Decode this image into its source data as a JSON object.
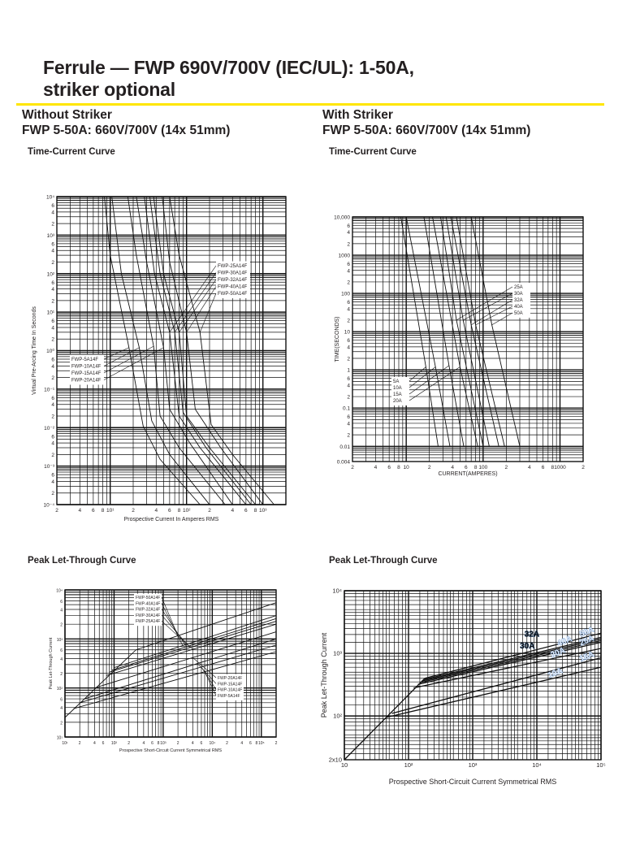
{
  "header": {
    "title_line1": "Ferrule — FWP 690V/700V (IEC/UL): 1-50A,",
    "title_line2": "striker optional",
    "accent_color": "#ffe600"
  },
  "left": {
    "heading": "Without Striker",
    "subheading": "FWP 5-50A: 660V/700V (14x 51mm)",
    "tc_caption": "Time-Current Curve",
    "plt_caption": "Peak Let-Through Curve"
  },
  "right": {
    "heading": "With Striker",
    "subheading": "FWP 5-50A: 660V/700V (14x 51mm)",
    "tc_caption": "Time-Current Curve",
    "plt_caption": "Peak Let-Through Curve"
  },
  "chart_data": [
    {
      "type": "line",
      "title": "Time-Current Curve (Without Striker)",
      "xlabel": "Prospective Current In Amperes RMS",
      "ylabel": "Virtual Pre-Arcing Time In Seconds",
      "xscale": "log",
      "yscale": "log",
      "xlim": [
        2,
        2000
      ],
      "ylim": [
        0.0001,
        10000
      ],
      "grid": true,
      "xticks": [
        [
          2,
          "2"
        ],
        [
          4,
          "4"
        ],
        [
          6,
          "6"
        ],
        [
          8,
          "8"
        ],
        [
          10,
          "10¹"
        ],
        [
          20,
          "2"
        ],
        [
          40,
          "4"
        ],
        [
          60,
          "6"
        ],
        [
          80,
          "8"
        ],
        [
          100,
          "10²"
        ],
        [
          200,
          "2"
        ],
        [
          400,
          "4"
        ],
        [
          600,
          "6"
        ],
        [
          800,
          "8"
        ],
        [
          1000,
          "10³"
        ]
      ],
      "yticks": [
        [
          10000,
          "10⁴"
        ],
        [
          6000,
          "6"
        ],
        [
          4000,
          "4"
        ],
        [
          2000,
          "2"
        ],
        [
          1000,
          "10³"
        ],
        [
          600,
          "6"
        ],
        [
          400,
          "4"
        ],
        [
          200,
          "2"
        ],
        [
          100,
          "10²"
        ],
        [
          60,
          "6"
        ],
        [
          40,
          "4"
        ],
        [
          20,
          "2"
        ],
        [
          10,
          "10¹"
        ],
        [
          6,
          "6"
        ],
        [
          4,
          "4"
        ],
        [
          2,
          "2"
        ],
        [
          1,
          "10⁰"
        ],
        [
          0.6,
          "6"
        ],
        [
          0.4,
          "4"
        ],
        [
          0.2,
          "2"
        ],
        [
          0.1,
          "10⁻¹"
        ],
        [
          0.06,
          "6"
        ],
        [
          0.04,
          "4"
        ],
        [
          0.02,
          "2"
        ],
        [
          0.01,
          "10⁻²"
        ],
        [
          0.006,
          "6"
        ],
        [
          0.004,
          "4"
        ],
        [
          0.002,
          "2"
        ],
        [
          0.001,
          "10⁻³"
        ],
        [
          0.0006,
          "6"
        ],
        [
          0.0004,
          "4"
        ],
        [
          0.0002,
          "2"
        ],
        [
          0.0001,
          "10⁻⁴"
        ]
      ],
      "series": [
        {
          "name": "FWP-5A14F",
          "points": [
            [
              8.4,
              10000
            ],
            [
              10,
              300
            ],
            [
              17.6,
              1.2
            ],
            [
              27,
              0.011
            ],
            [
              45,
              0.0015
            ],
            [
              150,
              0.0001
            ]
          ]
        },
        {
          "name": "FWP-10A14F",
          "points": [
            [
              10.5,
              10000
            ],
            [
              14,
              100
            ],
            [
              24,
              1.2
            ],
            [
              35,
              0.015
            ],
            [
              60,
              0.002
            ],
            [
              200,
              0.0001
            ]
          ]
        },
        {
          "name": "FWP-15A14F",
          "points": [
            [
              17,
              10000
            ],
            [
              22,
              300
            ],
            [
              37,
              1.3
            ],
            [
              45,
              0.02
            ],
            [
              80,
              0.003
            ],
            [
              320,
              0.0001
            ]
          ]
        },
        {
          "name": "FWP-20A14F",
          "points": [
            [
              22,
              10000
            ],
            [
              30,
              200
            ],
            [
              50,
              1.2
            ],
            [
              60,
              0.03
            ],
            [
              110,
              0.004
            ],
            [
              400,
              0.0001
            ]
          ]
        },
        {
          "name": "FWP-25A14F",
          "points": [
            [
              28,
              10000
            ],
            [
              38,
              100
            ],
            [
              60,
              3
            ],
            [
              80,
              0.02
            ],
            [
              150,
              0.003
            ],
            [
              600,
              0.0001
            ]
          ]
        },
        {
          "name": "FWP-30A14F",
          "points": [
            [
              33,
              10000
            ],
            [
              45,
              100
            ],
            [
              70,
              3
            ],
            [
              90,
              0.025
            ],
            [
              180,
              0.003
            ],
            [
              700,
              0.0001
            ]
          ]
        },
        {
          "name": "FWP-32A14F",
          "points": [
            [
              37,
              10000
            ],
            [
              50,
              100
            ],
            [
              80,
              3
            ],
            [
              100,
              0.02
            ],
            [
              200,
              0.003
            ],
            [
              800,
              0.0001
            ]
          ]
        },
        {
          "name": "FWP-40A14F",
          "points": [
            [
              48,
              10000
            ],
            [
              60,
              200
            ],
            [
              100,
              3
            ],
            [
              130,
              0.03
            ],
            [
              280,
              0.003
            ],
            [
              1000,
              0.0001
            ]
          ]
        },
        {
          "name": "FWP-50A14F",
          "points": [
            [
              60,
              10000
            ],
            [
              80,
              300
            ],
            [
              150,
              3
            ],
            [
              210,
              0.012
            ],
            [
              400,
              0.002
            ],
            [
              1400,
              0.0001
            ]
          ]
        }
      ]
    },
    {
      "type": "line",
      "title": "Time-Current Curve (With Striker)",
      "xlabel": "CURRENT(AMPERES)",
      "ylabel": "TIME(SECONDS)",
      "xscale": "log",
      "yscale": "log",
      "xlim": [
        2,
        2000
      ],
      "ylim": [
        0.004,
        10000
      ],
      "grid": true,
      "xticks": [
        [
          2,
          "2"
        ],
        [
          4,
          "4"
        ],
        [
          6,
          "6"
        ],
        [
          8,
          "8"
        ],
        [
          10,
          "10"
        ],
        [
          20,
          "2"
        ],
        [
          40,
          "4"
        ],
        [
          60,
          "6"
        ],
        [
          80,
          "8"
        ],
        [
          100,
          "100"
        ],
        [
          200,
          "2"
        ],
        [
          400,
          "4"
        ],
        [
          600,
          "6"
        ],
        [
          800,
          "8"
        ],
        [
          1000,
          "1000"
        ],
        [
          2000,
          "2"
        ]
      ],
      "yticks": [
        [
          10000,
          "10,000"
        ],
        [
          6000,
          "6"
        ],
        [
          4000,
          "4"
        ],
        [
          2000,
          "2"
        ],
        [
          1000,
          "1000"
        ],
        [
          600,
          "6"
        ],
        [
          400,
          "4"
        ],
        [
          200,
          "2"
        ],
        [
          100,
          "100"
        ],
        [
          60,
          "6"
        ],
        [
          40,
          "4"
        ],
        [
          20,
          "2"
        ],
        [
          10,
          "10"
        ],
        [
          6,
          "6"
        ],
        [
          4,
          "4"
        ],
        [
          2,
          "2"
        ],
        [
          1,
          "1"
        ],
        [
          0.6,
          "6"
        ],
        [
          0.4,
          "4"
        ],
        [
          0.2,
          "2"
        ],
        [
          0.1,
          "0.1"
        ],
        [
          0.06,
          "6"
        ],
        [
          0.04,
          "4"
        ],
        [
          0.02,
          "2"
        ],
        [
          0.01,
          "0.01"
        ],
        [
          0.004,
          "0.004"
        ]
      ],
      "series": [
        {
          "name": "5A",
          "points": [
            [
              8.5,
              10000
            ],
            [
              18,
              1.2
            ],
            [
              26,
              0.01
            ]
          ]
        },
        {
          "name": "10A",
          "points": [
            [
              10,
              10000
            ],
            [
              24,
              1.2
            ],
            [
              37,
              0.01
            ]
          ]
        },
        {
          "name": "15A",
          "points": [
            [
              17,
              10000
            ],
            [
              36,
              1.3
            ],
            [
              56,
              0.01
            ]
          ]
        },
        {
          "name": "20A",
          "points": [
            [
              22,
              10000
            ],
            [
              50,
              1.2
            ],
            [
              85,
              0.01
            ]
          ]
        },
        {
          "name": "25A",
          "points": [
            [
              28,
              10000
            ],
            [
              45,
              20
            ],
            [
              100,
              0.01
            ]
          ]
        },
        {
          "name": "30A",
          "points": [
            [
              33,
              10000
            ],
            [
              55,
              20
            ],
            [
              120,
              0.01
            ]
          ]
        },
        {
          "name": "32A",
          "points": [
            [
              38,
              10000
            ],
            [
              70,
              15
            ],
            [
              160,
              0.01
            ]
          ]
        },
        {
          "name": "40A",
          "points": [
            [
              45,
              10000
            ],
            [
              80,
              15
            ],
            [
              190,
              0.01
            ]
          ]
        },
        {
          "name": "50A",
          "points": [
            [
              70,
              10000
            ],
            [
              130,
              15
            ],
            [
              300,
              0.01
            ]
          ]
        }
      ]
    },
    {
      "type": "line",
      "title": "Peak Let-Through Curve (Without Striker)",
      "xlabel": "Prospective Short-Circuit Current Symmetrical RMS",
      "ylabel": "Peak Let-Through Current",
      "xscale": "log",
      "yscale": "log",
      "xlim": [
        10,
        200000
      ],
      "ylim": [
        10,
        10000
      ],
      "grid": true,
      "xticks": [
        [
          10,
          "10¹"
        ],
        [
          20,
          "2"
        ],
        [
          40,
          "4"
        ],
        [
          60,
          "6"
        ],
        [
          100,
          "10²"
        ],
        [
          200,
          "2"
        ],
        [
          400,
          "4"
        ],
        [
          600,
          "6"
        ],
        [
          800,
          "8"
        ],
        [
          1000,
          "10³"
        ],
        [
          2000,
          "2"
        ],
        [
          4000,
          "4"
        ],
        [
          6000,
          "6"
        ],
        [
          10000,
          "10⁴"
        ],
        [
          20000,
          "2"
        ],
        [
          40000,
          "4"
        ],
        [
          60000,
          "6"
        ],
        [
          80000,
          "8"
        ],
        [
          100000,
          "10⁵"
        ],
        [
          200000,
          "2"
        ]
      ],
      "yticks": [
        [
          10,
          "10¹"
        ],
        [
          20,
          "2"
        ],
        [
          40,
          "4"
        ],
        [
          60,
          "6"
        ],
        [
          100,
          "10²"
        ],
        [
          200,
          "2"
        ],
        [
          400,
          "4"
        ],
        [
          600,
          "6"
        ],
        [
          1000,
          "10³"
        ],
        [
          2000,
          "2"
        ],
        [
          4000,
          "4"
        ],
        [
          6000,
          "6"
        ],
        [
          10000,
          "10⁴"
        ]
      ],
      "series": [
        {
          "name": "FWP-50A14F",
          "points": [
            [
              10,
              25
            ],
            [
              280,
              600
            ],
            [
              200000,
              5500
            ]
          ]
        },
        {
          "name": "FWP-40A14F",
          "points": [
            [
              100,
              260
            ],
            [
              200000,
              3000
            ]
          ]
        },
        {
          "name": "FWP-32A14F",
          "points": [
            [
              90,
              230
            ],
            [
              200000,
              2600
            ]
          ]
        },
        {
          "name": "FWP-30A14F",
          "points": [
            [
              80,
              210
            ],
            [
              200000,
              2300
            ]
          ]
        },
        {
          "name": "FWP-25A14F",
          "points": [
            [
              70,
              180
            ],
            [
              200000,
              2000
            ]
          ]
        },
        {
          "name": "FWP-20A14F",
          "points": [
            [
              40,
              100
            ],
            [
              200000,
              1400
            ]
          ]
        },
        {
          "name": "FWP-15A14F",
          "points": [
            [
              25,
              60
            ],
            [
              200000,
              1000
            ]
          ]
        },
        {
          "name": "FWP-10A14F",
          "points": [
            [
              20,
              50
            ],
            [
              200000,
              750
            ]
          ]
        },
        {
          "name": "FWP-5A14F",
          "points": [
            [
              15,
              38
            ],
            [
              200000,
              550
            ]
          ]
        }
      ]
    },
    {
      "type": "line",
      "title": "Peak Let-Through Curve (With Striker)",
      "xlabel": "Prospective Short-Circuit Current Symmetrical RMS",
      "ylabel": "Peak Let-Through Current",
      "xscale": "log",
      "yscale": "log",
      "xlim": [
        10,
        100000
      ],
      "ylim": [
        20,
        10000
      ],
      "grid": true,
      "xticks": [
        [
          10,
          "10"
        ],
        [
          100,
          "10²"
        ],
        [
          1000,
          "10³"
        ],
        [
          10000,
          "10⁴"
        ],
        [
          100000,
          "10⁵"
        ]
      ],
      "yticks": [
        [
          20,
          "2x10"
        ],
        [
          100,
          "10²"
        ],
        [
          1000,
          "10³"
        ],
        [
          10000,
          "10⁴"
        ]
      ],
      "series": [
        {
          "name": "50A",
          "points": [
            [
              10,
              20
            ],
            [
              180,
              400
            ],
            [
              100000,
              2100
            ]
          ]
        },
        {
          "name": "40A",
          "points": [
            [
              170,
              380
            ],
            [
              100000,
              1800
            ]
          ]
        },
        {
          "name": "32A",
          "points": [
            [
              160,
              360
            ],
            [
              100000,
              1700
            ]
          ]
        },
        {
          "name": "30A",
          "points": [
            [
              150,
              340
            ],
            [
              100000,
              1600
            ]
          ]
        },
        {
          "name": "25A",
          "points": [
            [
              140,
              320
            ],
            [
              100000,
              1500
            ]
          ]
        },
        {
          "name": "20A",
          "points": [
            [
              120,
              280
            ],
            [
              100000,
              1200
            ]
          ]
        },
        {
          "name": "15A",
          "points": [
            [
              55,
              110
            ],
            [
              100000,
              850
            ]
          ]
        },
        {
          "name": "10A",
          "points": [
            [
              45,
              95
            ],
            [
              100000,
              600
            ]
          ]
        }
      ]
    }
  ]
}
